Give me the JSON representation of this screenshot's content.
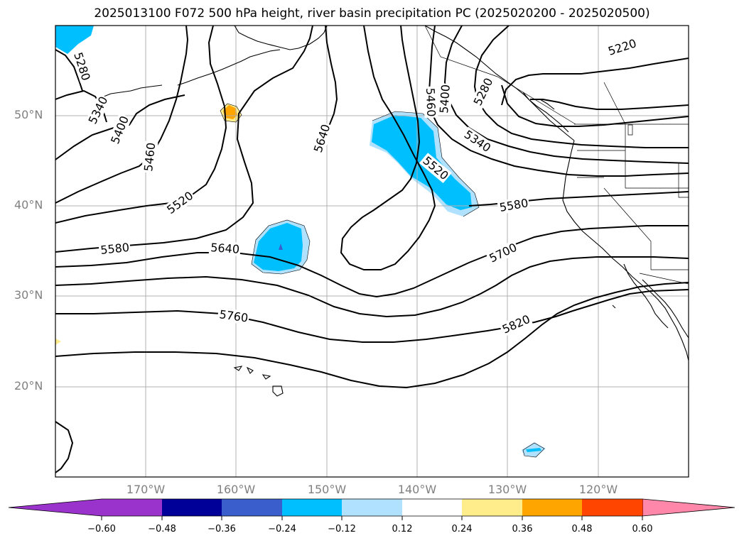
{
  "title": "2025013100 F072 500 hPa height, river basin precipitation PC (2025020200 - 2025020500)",
  "colors": {
    "neg_060": "#9933cc",
    "neg_048": "#000099",
    "neg_036": "#3a5fcd",
    "neg_024": "#00bfff",
    "neg_012": "#b0e2ff",
    "zero": "#ffffff",
    "pos_012": "#ffec8b",
    "pos_024": "#ffa500",
    "pos_036": "#ff4500",
    "pos_048": "#b22222",
    "pos_060": "#ff88aa",
    "contour": "#000000",
    "grid": "#b0b0b0",
    "coast": "#000000"
  },
  "lat_labels": [
    "50°N",
    "40°N",
    "30°N",
    "20°N"
  ],
  "lon_labels": [
    "170°W",
    "160°W",
    "150°W",
    "140°W",
    "130°W",
    "120°W"
  ],
  "contour_labels": [
    "5280",
    "5340",
    "5400",
    "5460",
    "5520",
    "5580",
    "5640",
    "5640",
    "5760",
    "5460",
    "5400",
    "5280",
    "5220",
    "5340",
    "5520",
    "5580",
    "5700",
    "5820"
  ],
  "colorbar": {
    "ticks": [
      "−0.60",
      "−0.48",
      "−0.36",
      "−0.24",
      "−0.12",
      "0.12",
      "0.24",
      "0.36",
      "0.48",
      "0.60"
    ]
  }
}
